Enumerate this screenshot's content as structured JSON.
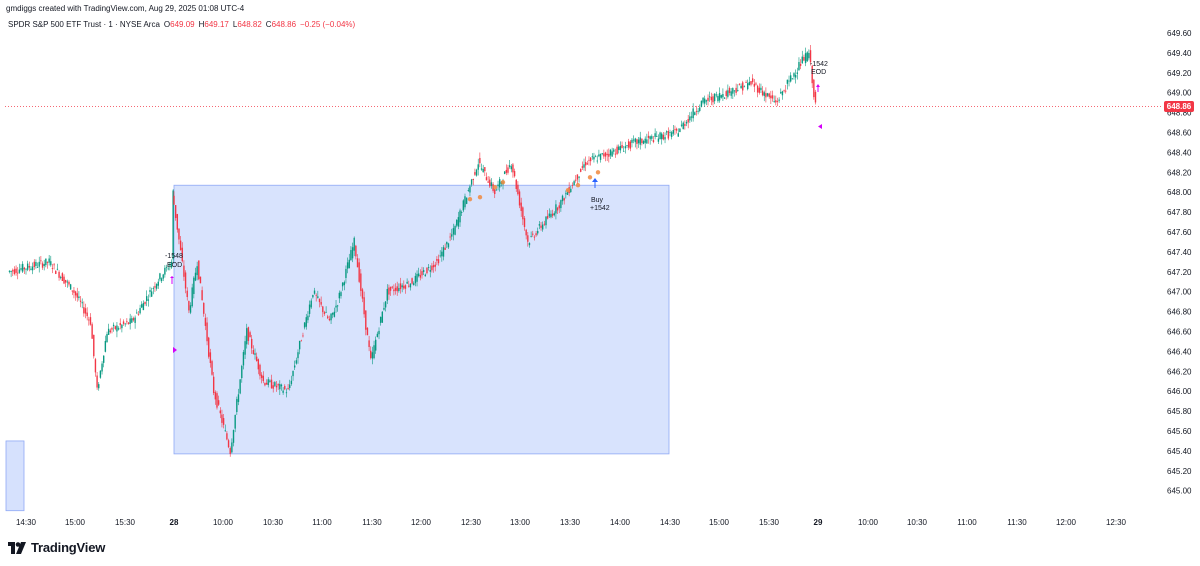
{
  "header": {
    "credit": "gmdiggs created with TradingView.com, Aug 29, 2025 01:08 UTC-4",
    "symbol": "SPDR S&P 500 ETF Trust · 1 · NYSE Arca",
    "open_label": "O",
    "open": "649.09",
    "high_label": "H",
    "high": "649.17",
    "low_label": "L",
    "low": "648.82",
    "close_label": "C",
    "close": "648.86",
    "change": "−0.25 (−0.04%)"
  },
  "brand": {
    "name": "TradingView",
    "logo_icon": "tradingview-logo-icon"
  },
  "colors": {
    "up": "#089981",
    "down": "#f23645",
    "box_fill": "#d6e1fd",
    "box_stroke": "#8fa9f5",
    "accent_marker": "#d500f9",
    "blue_marker": "#2962ff",
    "orange_dot": "#f0883e"
  },
  "chart_data": {
    "type": "candlestick",
    "price_axis": {
      "ticks": [
        "649.60",
        "649.40",
        "649.20",
        "649.00",
        "648.80",
        "648.60",
        "648.40",
        "648.20",
        "648.00",
        "647.80",
        "647.60",
        "647.40",
        "647.20",
        "647.00",
        "646.80",
        "646.60",
        "646.40",
        "646.20",
        "646.00",
        "645.80",
        "645.60",
        "645.40",
        "645.20",
        "645.00"
      ],
      "range": [
        645.0,
        649.6
      ],
      "last_price": "648.86"
    },
    "time_axis": {
      "ticks": [
        "14:30",
        "15:00",
        "15:30",
        "28",
        "10:00",
        "10:30",
        "11:00",
        "11:30",
        "12:00",
        "12:30",
        "13:00",
        "13:30",
        "14:00",
        "14:30",
        "15:00",
        "15:30",
        "29",
        "10:00",
        "10:30",
        "11:00",
        "11:30",
        "12:00",
        "12:30"
      ],
      "bold_ticks": [
        "28",
        "29"
      ]
    },
    "price_path": [
      [
        "14:20",
        647.2
      ],
      [
        "14:45",
        647.3
      ],
      [
        "15:00",
        647.0
      ],
      [
        "15:10",
        646.7
      ],
      [
        "15:14",
        646.0
      ],
      [
        "15:20",
        646.6
      ],
      [
        "15:35",
        646.7
      ],
      [
        "15:50",
        647.1
      ],
      [
        "15:59",
        647.3
      ],
      [
        "Aug28 9:30",
        648.0
      ],
      [
        "9:40",
        646.8
      ],
      [
        "9:45",
        647.3
      ],
      [
        "9:55",
        646.0
      ],
      [
        "10:05",
        645.4
      ],
      [
        "10:15",
        646.6
      ],
      [
        "10:25",
        646.1
      ],
      [
        "10:40",
        646.0
      ],
      [
        "10:55",
        647.0
      ],
      [
        "11:05",
        646.7
      ],
      [
        "11:10",
        646.9
      ],
      [
        "11:20",
        647.5
      ],
      [
        "11:30",
        646.3
      ],
      [
        "11:40",
        647.0
      ],
      [
        "11:55",
        647.1
      ],
      [
        "12:10",
        647.3
      ],
      [
        "12:20",
        647.6
      ],
      [
        "12:35",
        648.3
      ],
      [
        "12:45",
        648.0
      ],
      [
        "12:55",
        648.3
      ],
      [
        "13:05",
        647.5
      ],
      [
        "13:25",
        647.9
      ],
      [
        "13:40",
        648.3
      ],
      [
        "14:10",
        648.5
      ],
      [
        "14:35",
        648.6
      ],
      [
        "14:50",
        648.9
      ],
      [
        "15:20",
        649.1
      ],
      [
        "15:35",
        648.9
      ],
      [
        "15:50",
        649.3
      ],
      [
        "15:55",
        649.4
      ],
      [
        "15:59",
        648.86
      ]
    ],
    "box": {
      "start_time": "Aug28 9:30",
      "end_time": "14:30",
      "high": 648.07,
      "low": 645.37
    },
    "box_prev": {
      "start_time": "14:20",
      "end_time": "14:30",
      "high": 645.5,
      "low": 645.0
    },
    "annotations": [
      {
        "text_1": "-1548",
        "text_2": "EOD",
        "time": "Aug28 9:30"
      },
      {
        "text_1": "Buy",
        "text_2": "+1542",
        "time": "13:40"
      },
      {
        "text_1": "-1542",
        "text_2": "EOD",
        "time": "15:55"
      }
    ]
  }
}
